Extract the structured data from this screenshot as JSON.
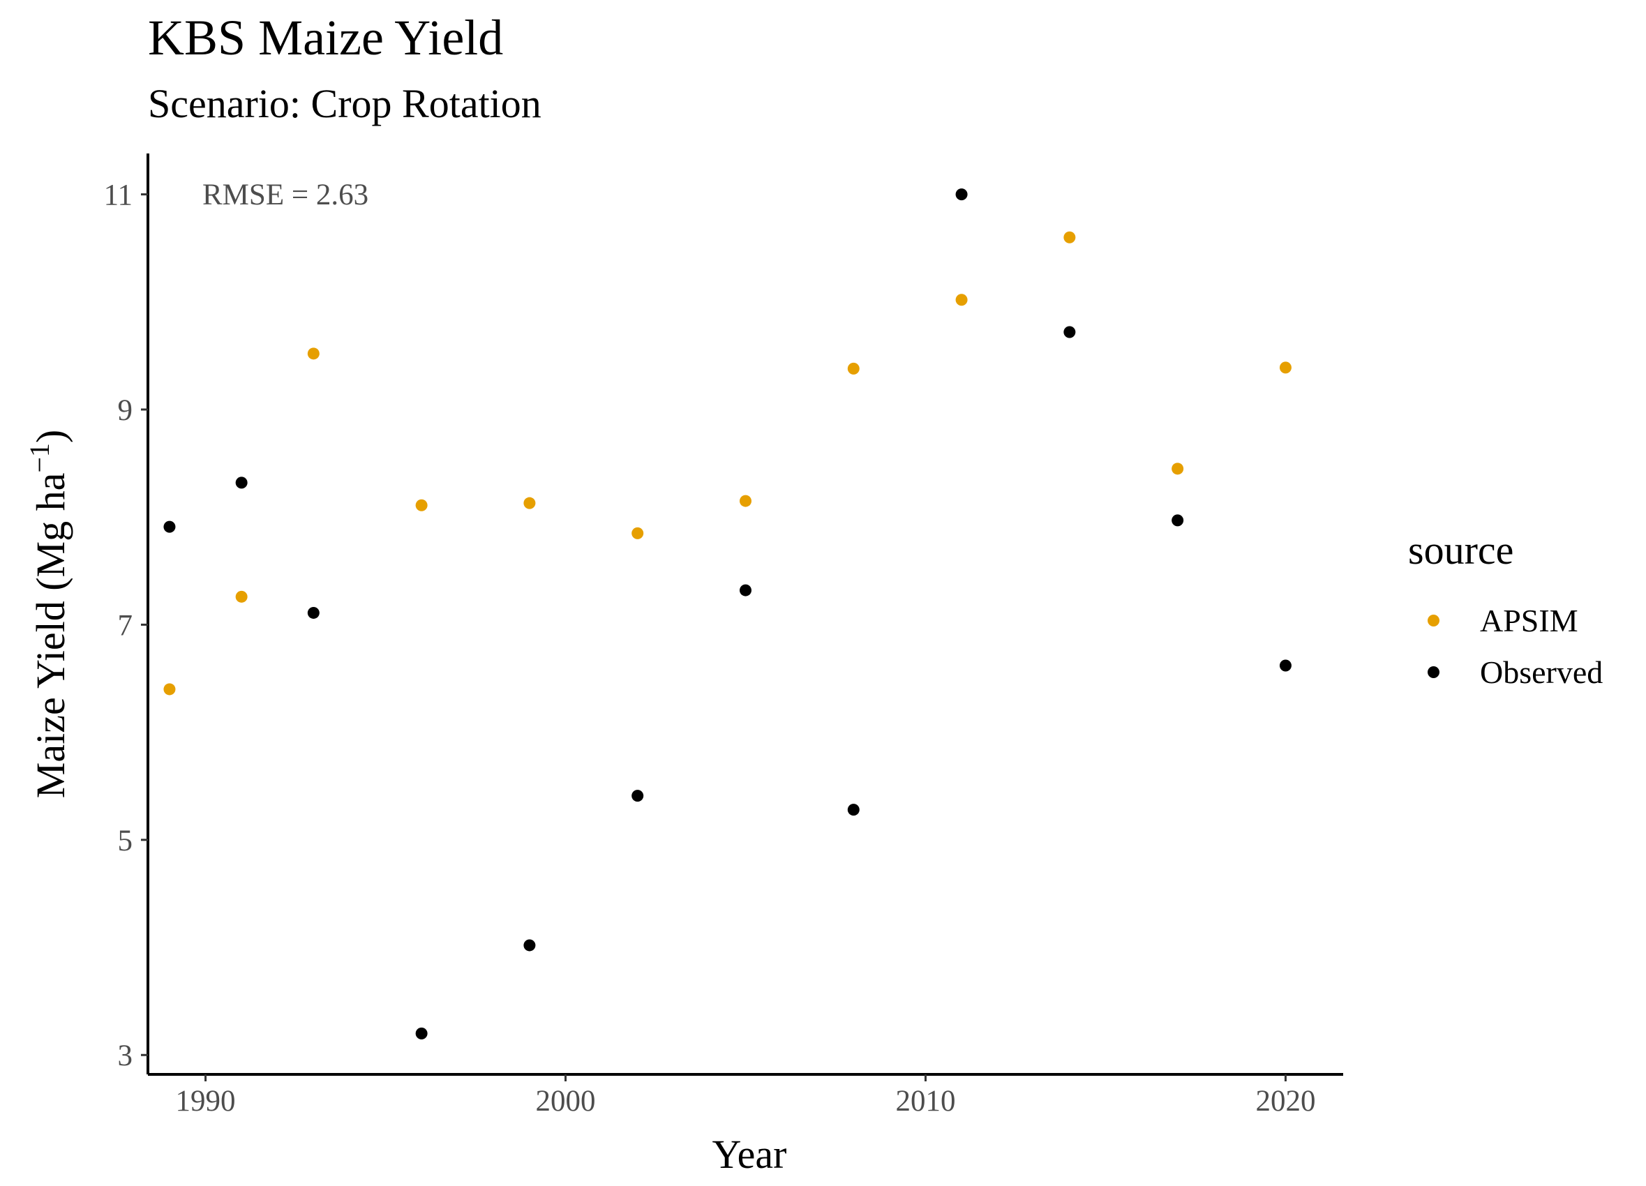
{
  "chart_data": {
    "type": "scatter",
    "title": "KBS Maize Yield",
    "subtitle": "Scenario: Crop Rotation",
    "xlabel": "Year",
    "ylabel": "Maize Yield (Mg ha",
    "ylabel_sup": "−1",
    "ylabel_end": ")",
    "xlim": [
      1988.4,
      2021.6
    ],
    "ylim": [
      2.82,
      11.38
    ],
    "xticks": [
      1990,
      2000,
      2010,
      2020
    ],
    "yticks": [
      3,
      5,
      7,
      9,
      11
    ],
    "annotation": "RMSE = 2.63",
    "legend": {
      "title": "source",
      "position": "right"
    },
    "series": [
      {
        "name": "APSIM",
        "color": "#E69F00",
        "x": [
          1989,
          1991,
          1993,
          1996,
          1999,
          2002,
          2005,
          2008,
          2011,
          2014,
          2017,
          2020
        ],
        "y": [
          6.4,
          7.26,
          9.52,
          8.11,
          8.13,
          7.85,
          8.15,
          9.38,
          10.02,
          10.6,
          8.45,
          9.39
        ]
      },
      {
        "name": "Observed",
        "color": "#000000",
        "x": [
          1989,
          1991,
          1993,
          1996,
          1999,
          2002,
          2005,
          2008,
          2011,
          2014,
          2017,
          2020
        ],
        "y": [
          7.91,
          8.32,
          7.11,
          3.2,
          4.02,
          5.41,
          7.32,
          5.28,
          11.0,
          9.72,
          7.97,
          6.62
        ]
      }
    ],
    "grid": false
  }
}
